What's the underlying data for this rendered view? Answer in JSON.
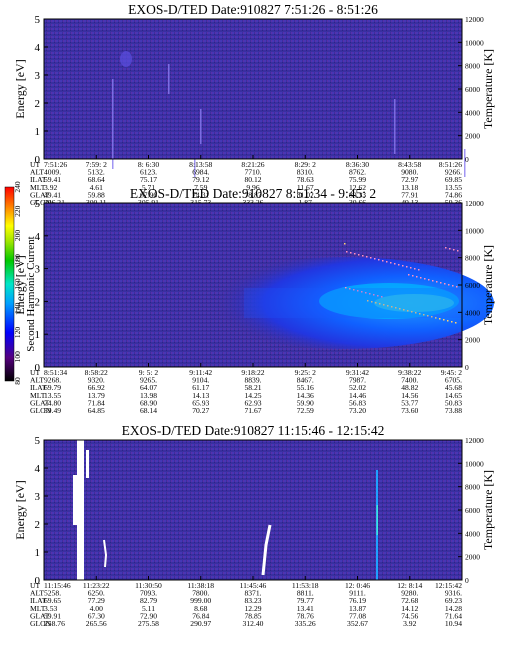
{
  "chart_data": [
    {
      "type": "heatmap",
      "title": "EXOS-D/TED   Date:910827   7:51:26 - 8:51:26",
      "ylabel": "Energy [eV]",
      "ylabel_right": "Temperature [K]",
      "ylim": [
        0,
        5
      ],
      "yticks": [
        "0",
        "1",
        "2",
        "3",
        "4",
        "5"
      ],
      "ylim_right": [
        0,
        12000
      ],
      "yticks_right": [
        "0",
        "2000",
        "4000",
        "6000",
        "8000",
        "10000",
        "12000"
      ],
      "rows": [
        {
          "name": "UT",
          "values": [
            "7:51:26",
            "7:59: 2",
            "8: 6:30",
            "8:13:58",
            "8:21:26",
            "8:29: 2",
            "8:36:30",
            "8:43:58",
            "8:51:26"
          ]
        },
        {
          "name": "ALT",
          "values": [
            "4009.",
            "5132.",
            "6123.",
            "6984.",
            "7710.",
            "8310.",
            "8762.",
            "9080.",
            "9266."
          ]
        },
        {
          "name": "ILAT",
          "values": [
            "59.41",
            "68.64",
            "75.17",
            "79.12",
            "80.12",
            "78.63",
            "75.99",
            "72.97",
            "69.85"
          ]
        },
        {
          "name": "MLT",
          "values": [
            "3.92",
            "4.61",
            "5.71",
            "7.59",
            "9.96",
            "11.67",
            "12.62",
            "13.18",
            "13.55"
          ]
        },
        {
          "name": "GLAT",
          "values": [
            "49.41",
            "59.88",
            "67.96",
            "74.31",
            "78.87",
            "81.02",
            "80.33",
            "77.91",
            "74.86"
          ]
        },
        {
          "name": "GLON",
          "values": [
            "296.21",
            "300.11",
            "305.91",
            "315.73",
            "333.26",
            "1.87",
            "30.66",
            "49.13",
            "59.36"
          ]
        }
      ]
    },
    {
      "type": "heatmap",
      "title": "EXOS-D/TED   Date:910827   8:51:34 - 9:45: 2",
      "ylabel": "Energy [eV]",
      "ylabel_right": "Temperature [K]",
      "ylim": [
        0,
        5
      ],
      "yticks": [
        "0",
        "1",
        "2",
        "3",
        "4",
        "5"
      ],
      "ylim_right": [
        0,
        12000
      ],
      "yticks_right": [
        "0",
        "2000",
        "4000",
        "6000",
        "8000",
        "10000",
        "12000"
      ],
      "colorbar": {
        "label": "Second Harmonic Current",
        "ticks": [
          "80",
          "100",
          "120",
          "140",
          "160",
          "180",
          "200",
          "220",
          "240"
        ],
        "colors": [
          "#000000",
          "#55007f",
          "#3a00c8",
          "#0000ff",
          "#006aff",
          "#00c8ff",
          "#00e6c8",
          "#00c800",
          "#a0e600",
          "#ffff00",
          "#ffb400",
          "#ff6400",
          "#ff0000"
        ]
      },
      "rows": [
        {
          "name": "UT",
          "values": [
            "8:51:34",
            "8:58:22",
            "9: 5: 2",
            "9:11:42",
            "9:18:22",
            "9:25: 2",
            "9:31:42",
            "9:38:22",
            "9:45: 2"
          ]
        },
        {
          "name": "ALT",
          "values": [
            "9268.",
            "9320.",
            "9265.",
            "9104.",
            "8839.",
            "8467.",
            "7987.",
            "7400.",
            "6705."
          ]
        },
        {
          "name": "ILAT",
          "values": [
            "69.79",
            "66.92",
            "64.07",
            "61.17",
            "58.21",
            "55.16",
            "52.02",
            "48.82",
            "45.68"
          ]
        },
        {
          "name": "MLT",
          "values": [
            "13.55",
            "13.79",
            "13.98",
            "14.13",
            "14.25",
            "14.36",
            "14.46",
            "14.56",
            "14.65"
          ]
        },
        {
          "name": "GLAT",
          "values": [
            "74.80",
            "71.84",
            "68.90",
            "65.93",
            "62.93",
            "59.90",
            "56.83",
            "53.77",
            "50.83"
          ]
        },
        {
          "name": "GLON",
          "values": [
            "59.49",
            "64.85",
            "68.14",
            "70.27",
            "71.67",
            "72.59",
            "73.20",
            "73.60",
            "73.88"
          ]
        }
      ]
    },
    {
      "type": "heatmap",
      "title": "EXOS-D/TED   Date:910827   11:15:46 - 12:15:42",
      "ylabel": "Energy [eV]",
      "ylabel_right": "Temperature [K]",
      "ylim": [
        0,
        5
      ],
      "yticks": [
        "0",
        "1",
        "2",
        "3",
        "4",
        "5"
      ],
      "ylim_right": [
        0,
        12000
      ],
      "yticks_right": [
        "0",
        "2000",
        "4000",
        "6000",
        "8000",
        "10000",
        "12000"
      ],
      "rows": [
        {
          "name": "UT",
          "values": [
            "11:15:46",
            "11:23:22",
            "11:30:50",
            "11:38:18",
            "11:45:46",
            "11:53:18",
            "12: 0:46",
            "12: 8:14",
            "12:15:42"
          ]
        },
        {
          "name": "ALT",
          "values": [
            "5258.",
            "6250.",
            "7093.",
            "7800.",
            "8371.",
            "8811.",
            "9111.",
            "9280.",
            "9316."
          ]
        },
        {
          "name": "ILAT",
          "values": [
            "69.65",
            "77.29",
            "82.79",
            "999.00",
            "83.23",
            "79.77",
            "76.19",
            "72.68",
            "69.23"
          ]
        },
        {
          "name": "MLT",
          "values": [
            "3.53",
            "4.00",
            "5.11",
            "8.68",
            "12.29",
            "13.41",
            "13.87",
            "14.12",
            "14.28"
          ]
        },
        {
          "name": "GLAT",
          "values": [
            "59.91",
            "67.30",
            "72.90",
            "76.84",
            "78.85",
            "78.76",
            "77.08",
            "74.56",
            "71.64"
          ]
        },
        {
          "name": "GLON",
          "values": [
            "258.76",
            "265.56",
            "275.58",
            "290.97",
            "312.40",
            "335.26",
            "352.67",
            "3.92",
            "10.94"
          ]
        }
      ]
    }
  ]
}
